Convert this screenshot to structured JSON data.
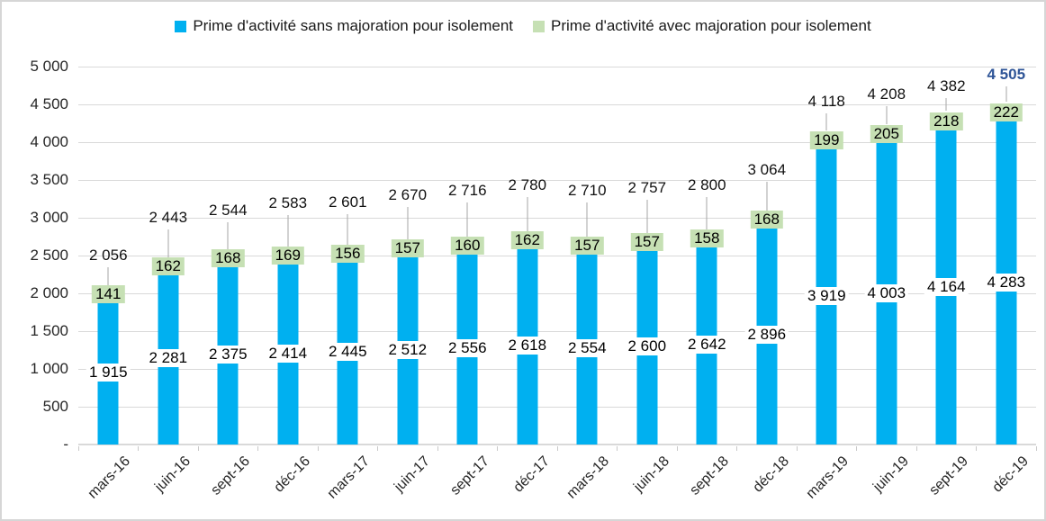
{
  "legend": [
    {
      "label": "Prime d'activité sans majoration pour isolement",
      "color": "#00b0f0"
    },
    {
      "label": "Prime d'activité avec majoration pour isolement",
      "color": "#c6e0b4"
    }
  ],
  "chart_data": {
    "type": "bar",
    "stacked": true,
    "categories": [
      "mars-16",
      "juin-16",
      "sept-16",
      "déc-16",
      "mars-17",
      "juin-17",
      "sept-17",
      "déc-17",
      "mars-18",
      "juin-18",
      "sept-18",
      "déc-18",
      "mars-19",
      "juin-19",
      "sept-19",
      "déc-19"
    ],
    "series": [
      {
        "name": "Prime d'activité sans majoration pour isolement",
        "color": "#00b0f0",
        "values": [
          1915,
          2281,
          2375,
          2414,
          2445,
          2512,
          2556,
          2618,
          2554,
          2600,
          2642,
          2896,
          3919,
          4003,
          4164,
          4283
        ],
        "labels": [
          "1 915",
          "2 281",
          "2 375",
          "2 414",
          "2 445",
          "2 512",
          "2 556",
          "2 618",
          "2 554",
          "2 600",
          "2 642",
          "2 896",
          "3 919",
          "4 003",
          "4 164",
          "4 283"
        ]
      },
      {
        "name": "Prime d'activité avec majoration pour isolement",
        "color": "#c6e0b4",
        "values": [
          141,
          162,
          168,
          169,
          156,
          157,
          160,
          162,
          157,
          157,
          158,
          168,
          199,
          205,
          218,
          222
        ],
        "labels": [
          "141",
          "162",
          "168",
          "169",
          "156",
          "157",
          "160",
          "162",
          "157",
          "157",
          "158",
          "168",
          "199",
          "205",
          "218",
          "222"
        ]
      }
    ],
    "totals": [
      2056,
      2443,
      2544,
      2583,
      2601,
      2670,
      2716,
      2780,
      2710,
      2757,
      2800,
      3064,
      4118,
      4208,
      4382,
      4505
    ],
    "total_labels": [
      "2 056",
      "2 443",
      "2 544",
      "2 583",
      "2 601",
      "2 670",
      "2 716",
      "2 780",
      "2 710",
      "2 757",
      "2 800",
      "3 064",
      "4 118",
      "4 208",
      "4 382",
      "4 505"
    ],
    "highlight_last_total": true,
    "highlight_color": "#2f5597",
    "ylim": [
      0,
      5000
    ],
    "ytick_step": 500,
    "ytick_labels": [
      "-",
      "500",
      "1 000",
      "1 500",
      "2 000",
      "2 500",
      "3 000",
      "3 500",
      "4 000",
      "4 500",
      "5 000"
    ],
    "grid": true,
    "legend_position": "top",
    "layout": {
      "leader_line_color": "#a6a6a6",
      "gridline_color": "#d9d9d9",
      "total_label_offsets": [
        27,
        37,
        36,
        41,
        41,
        43,
        44,
        44,
        44,
        43,
        43,
        38,
        25,
        26,
        20,
        23
      ]
    }
  }
}
